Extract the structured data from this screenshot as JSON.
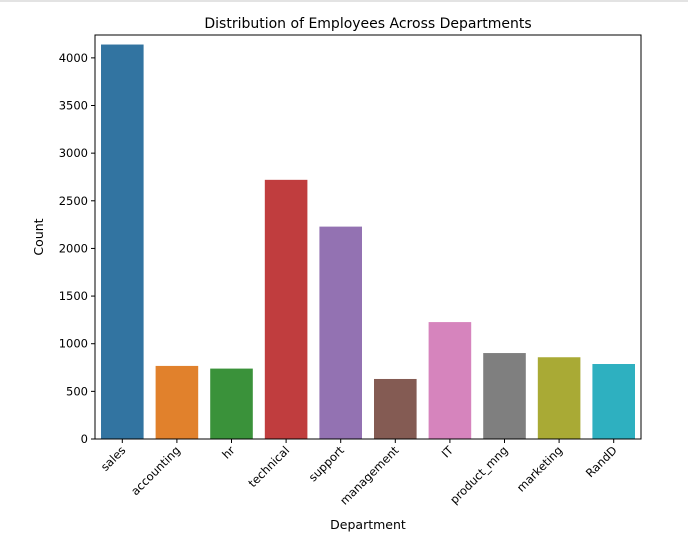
{
  "chart_data": {
    "type": "bar",
    "title": "Distribution of Employees Across Departments",
    "xlabel": "Department",
    "ylabel": "Count",
    "categories": [
      "sales",
      "accounting",
      "hr",
      "technical",
      "support",
      "management",
      "IT",
      "product_mng",
      "marketing",
      "RandD"
    ],
    "values": [
      4140,
      767,
      739,
      2720,
      2229,
      630,
      1227,
      902,
      858,
      787
    ],
    "colors": [
      "#3274a1",
      "#e1812c",
      "#3a923a",
      "#c03d3e",
      "#9372b2",
      "#845b53",
      "#d684bd",
      "#7f7f7f",
      "#a9aa35",
      "#2eb0c0"
    ],
    "ylim": [
      0,
      4240
    ],
    "yticks": [
      0,
      500,
      1000,
      1500,
      2000,
      2500,
      3000,
      3500,
      4000
    ],
    "grid": false,
    "xtick_rotation": 45
  }
}
